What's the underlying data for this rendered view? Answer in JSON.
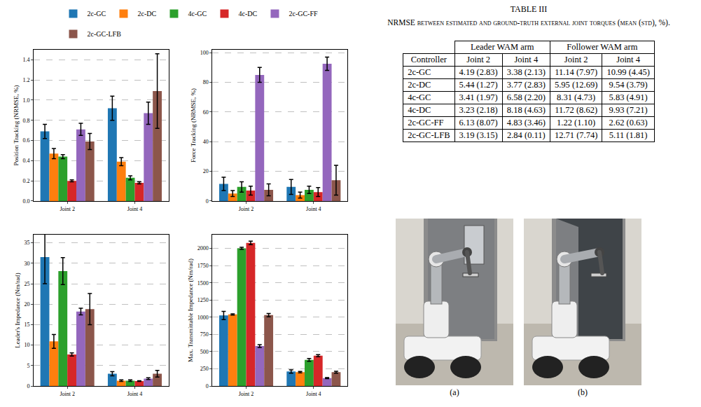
{
  "chart_data": [
    {
      "type": "bar",
      "y_label": "Position Tracking (NRMSE, %)",
      "categories": [
        "Joint 2",
        "Joint 4"
      ],
      "series": [
        {
          "name": "2c-GC",
          "color": "#1f77b4",
          "values": [
            0.69,
            0.92
          ],
          "errors": [
            0.07,
            0.12
          ]
        },
        {
          "name": "2c-DC",
          "color": "#ff7f0e",
          "values": [
            0.47,
            0.39
          ],
          "errors": [
            0.05,
            0.04
          ]
        },
        {
          "name": "4c-GC",
          "color": "#2ca02c",
          "values": [
            0.44,
            0.23
          ],
          "errors": [
            0.02,
            0.02
          ]
        },
        {
          "name": "4c-DC",
          "color": "#d62728",
          "values": [
            0.2,
            0.18
          ],
          "errors": [
            0.01,
            0.01
          ]
        },
        {
          "name": "2c-GC-FF",
          "color": "#9467bd",
          "values": [
            0.71,
            0.87
          ],
          "errors": [
            0.06,
            0.11
          ]
        },
        {
          "name": "2c-GC-LFB",
          "color": "#8c564b",
          "values": [
            0.59,
            1.09
          ],
          "errors": [
            0.08,
            0.37
          ]
        }
      ],
      "ylim": [
        0,
        1.5
      ],
      "yticks": [
        {
          "value": 0,
          "label": "0.0"
        },
        0.2,
        0.4,
        0.6,
        0.8,
        {
          "value": 1,
          "label": "1.0"
        },
        1.2,
        1.4
      ],
      "grid": true,
      "legend": "top"
    },
    {
      "type": "bar",
      "y_label": "Force Tracking (NRMSE, %)",
      "categories": [
        "Joint 2",
        "Joint 4"
      ],
      "series": [
        {
          "name": "2c-GC",
          "color": "#1f77b4",
          "values": [
            11.5,
            9.5
          ],
          "errors": [
            4.5,
            5
          ]
        },
        {
          "name": "2c-DC",
          "color": "#ff7f0e",
          "values": [
            5,
            4
          ],
          "errors": [
            2,
            2
          ]
        },
        {
          "name": "4c-GC",
          "color": "#2ca02c",
          "values": [
            9.5,
            7.5
          ],
          "errors": [
            3.5,
            2.5
          ]
        },
        {
          "name": "4c-DC",
          "color": "#d62728",
          "values": [
            7,
            6
          ],
          "errors": [
            3,
            3
          ]
        },
        {
          "name": "2c-GC-FF",
          "color": "#9467bd",
          "values": [
            85,
            92.5
          ],
          "errors": [
            5,
            4.5
          ]
        },
        {
          "name": "2c-GC-LFB",
          "color": "#8c564b",
          "values": [
            7.5,
            14
          ],
          "errors": [
            4,
            10
          ]
        }
      ],
      "ylim": [
        0,
        102
      ],
      "yticks": [
        0,
        20,
        40,
        60,
        80,
        100
      ],
      "grid": true
    },
    {
      "type": "bar",
      "y_label": "Leader's Impedance (Nm/rad)",
      "categories": [
        "Joint 2",
        "Joint 4"
      ],
      "series": [
        {
          "name": "2c-GC",
          "color": "#1f77b4",
          "values": [
            31.5,
            3.0
          ],
          "errors": [
            6.5,
            0.5
          ]
        },
        {
          "name": "2c-DC",
          "color": "#ff7f0e",
          "values": [
            10.9,
            1.3
          ],
          "errors": [
            1.7,
            0.2
          ]
        },
        {
          "name": "4c-GC",
          "color": "#2ca02c",
          "values": [
            28.1,
            1.3
          ],
          "errors": [
            3.3,
            0.2
          ]
        },
        {
          "name": "4c-DC",
          "color": "#d62728",
          "values": [
            7.7,
            1.2
          ],
          "errors": [
            0.4,
            0.1
          ]
        },
        {
          "name": "2c-GC-FF",
          "color": "#9467bd",
          "values": [
            18.2,
            1.8
          ],
          "errors": [
            0.8,
            0.2
          ]
        },
        {
          "name": "2c-GC-LFB",
          "color": "#8c564b",
          "values": [
            18.8,
            3.0
          ],
          "errors": [
            3.8,
            0.8
          ]
        }
      ],
      "ylim": [
        0,
        37
      ],
      "yticks": [
        0,
        5,
        10,
        15,
        20,
        25,
        30,
        35
      ],
      "grid": true
    },
    {
      "type": "bar",
      "y_label": "Max. Transmittable Impedance (Nm/rad)",
      "categories": [
        "Joint 2",
        "Joint 4"
      ],
      "series": [
        {
          "name": "2c-GC",
          "color": "#1f77b4",
          "values": [
            1025,
            210
          ],
          "errors": [
            60,
            25
          ]
        },
        {
          "name": "2c-DC",
          "color": "#ff7f0e",
          "values": [
            1040,
            200
          ],
          "errors": [
            10,
            10
          ]
        },
        {
          "name": "4c-GC",
          "color": "#2ca02c",
          "values": [
            2000,
            380
          ],
          "errors": [
            15,
            20
          ]
        },
        {
          "name": "4c-DC",
          "color": "#d62728",
          "values": [
            2080,
            440
          ],
          "errors": [
            25,
            15
          ]
        },
        {
          "name": "2c-GC-FF",
          "color": "#9467bd",
          "values": [
            580,
            115
          ],
          "errors": [
            20,
            8
          ]
        },
        {
          "name": "2c-GC-LFB",
          "color": "#8c564b",
          "values": [
            1030,
            200
          ],
          "errors": [
            25,
            15
          ]
        }
      ],
      "ylim": [
        0,
        2200
      ],
      "yticks": [
        0,
        250,
        500,
        750,
        1000,
        1250,
        1500,
        1750,
        2000
      ],
      "grid": true
    }
  ],
  "table": {
    "title": "TABLE III",
    "caption": "NRMSE between estimated and ground-truth external joint torques (mean (std), %).",
    "row_header": "Controller",
    "column_groups": [
      {
        "label": "Leader WAM arm",
        "columns": [
          "Joint 2",
          "Joint 4"
        ]
      },
      {
        "label": "Follower WAM arm",
        "columns": [
          "Joint 2",
          "Joint 4"
        ]
      }
    ],
    "rows": [
      [
        "2c-GC",
        "4.19 (2.83)",
        "3.38 (2.13)",
        "11.14 (7.97)",
        "10.99 (4.45)"
      ],
      [
        "2c-DC",
        "5.44 (1.27)",
        "3.77 (2.83)",
        "5.95 (12.69)",
        "9.54 (3.79)"
      ],
      [
        "4c-GC",
        "3.41 (1.97)",
        "6.58 (2.20)",
        "8.31 (4.73)",
        "5.83 (4.91)"
      ],
      [
        "4c-DC",
        "3.23 (2.18)",
        "8.18 (4.63)",
        "11.72 (8.62)",
        "9.93 (7.21)"
      ],
      [
        "2c-GC-FF",
        "6.13 (8.07)",
        "4.83 (3.46)",
        "1.22 (1.10)",
        "2.62 (0.63)"
      ],
      [
        "2c-GC-LFB",
        "3.19 (3.15)",
        "2.84 (0.11)",
        "12.71 (7.74)",
        "5.11 (1.81)"
      ]
    ]
  },
  "photos": {
    "captions": [
      "(a)",
      "(b)"
    ]
  }
}
